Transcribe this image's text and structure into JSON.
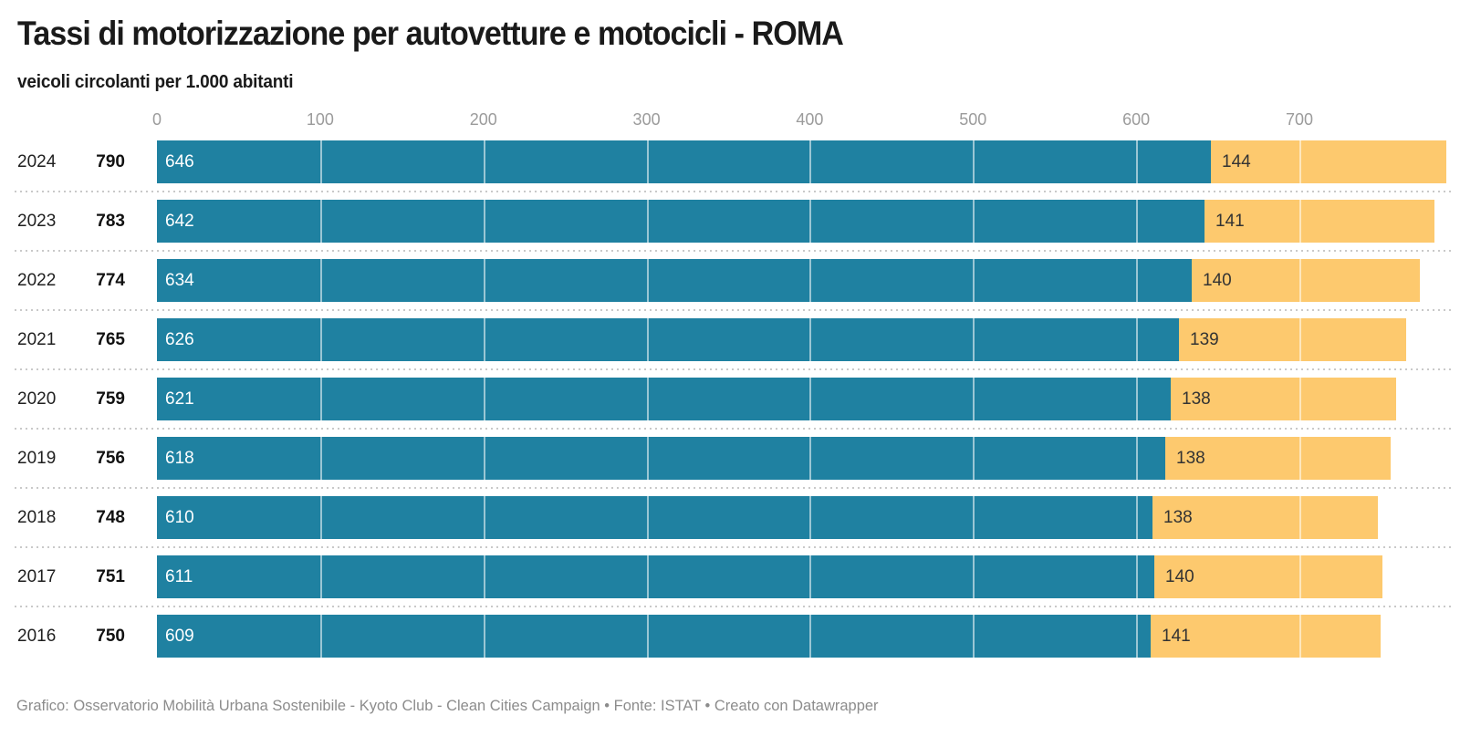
{
  "chart_data": {
    "type": "bar",
    "orientation": "horizontal",
    "stacked": true,
    "title": "Tassi di motorizzazione per autovetture e motocicli - ROMA",
    "subtitle": "veicoli circolanti per 1.000 abitanti",
    "categories": [
      "2024",
      "2023",
      "2022",
      "2021",
      "2020",
      "2019",
      "2018",
      "2017",
      "2016"
    ],
    "totals": [
      790,
      783,
      774,
      765,
      759,
      756,
      748,
      751,
      750
    ],
    "series": [
      {
        "name": "autovetture",
        "values": [
          646,
          642,
          634,
          626,
          621,
          618,
          610,
          611,
          609
        ]
      },
      {
        "name": "motocicli",
        "values": [
          144,
          141,
          140,
          139,
          138,
          138,
          138,
          140,
          141
        ]
      }
    ],
    "x_axis": {
      "ticks": [
        0,
        100,
        200,
        300,
        400,
        500,
        600,
        700
      ],
      "min": 0,
      "max": 790
    },
    "grid": true,
    "legend": false,
    "value_labels": "inside-start"
  },
  "footer": {
    "text": "Grafico: Osservatorio Mobilità Urbana Sostenibile - Kyoto Club - Clean Cities Campaign • Fonte: ISTAT • Creato con Datawrapper"
  },
  "colors": {
    "cars": "#1f81a1",
    "motorcycles": "#fdc96e",
    "axis_label": "#9b9b9b",
    "title_text": "#1a1a1a",
    "bar_label_on_cars": "#ffffff",
    "bar_label_on_motorcycles": "#333333",
    "separator": "#c9c9c9",
    "footer_text": "#8c8c8c"
  }
}
